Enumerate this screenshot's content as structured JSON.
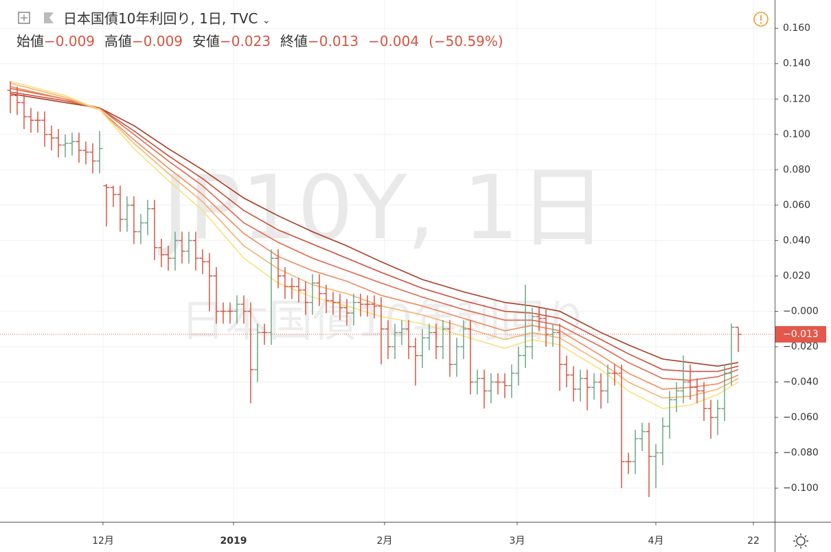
{
  "chart_data": {
    "type": "ohlc",
    "title": "日本国債10年利回り, 1日, TVC",
    "quote": [
      {
        "label": "始値",
        "value": "−0.009"
      },
      {
        "label": "高値",
        "value": "−0.009"
      },
      {
        "label": "安値",
        "value": "−0.023"
      },
      {
        "label": "終値",
        "value": "−0.013"
      }
    ],
    "change": "−0.004",
    "change_pct": "(−50.59%)",
    "watermark": "JP10Y, 1日",
    "watermark_sub": "日本国債10年利回り",
    "up_color": "#6ba583",
    "down_color": "#d75442",
    "open": [
      0.125,
      0.122,
      0.118,
      0.11,
      0.108,
      0.108,
      0.1,
      0.098,
      0.094,
      0.095,
      0.096,
      0.091,
      0.09,
      0.085,
      0.071,
      0.07,
      0.066,
      0.052,
      0.06,
      0.045,
      0.05,
      0.058,
      0.036,
      0.032,
      0.03,
      0.04,
      0.034,
      0.04,
      0.03,
      0.028,
      0.02,
      0,
      0,
      0,
      0.004,
      0,
      -0.033,
      -0.012,
      -0.012,
      0.03,
      0.02,
      0.014,
      0.014,
      0.012,
      0.005,
      0.016,
      0.01,
      0.006,
      0.005,
      0.002,
      -0.001,
      0.005,
      0.004,
      0.004,
      0.003,
      -0.01,
      -0.02,
      -0.012,
      -0.01,
      -0.02,
      -0.025,
      -0.015,
      -0.012,
      -0.02,
      -0.01,
      -0.03,
      -0.02,
      -0.01,
      -0.04,
      -0.038,
      -0.045,
      -0.04,
      -0.04,
      -0.042,
      -0.035,
      -0.025,
      -0.02,
      -0.003,
      -0.004,
      -0.013,
      -0.012,
      -0.03,
      -0.036,
      -0.044,
      -0.038,
      -0.043,
      -0.04,
      -0.045,
      -0.035,
      -0.035,
      -0.085,
      -0.085,
      -0.072,
      -0.068,
      -0.082,
      -0.08,
      -0.065,
      -0.05,
      -0.045,
      -0.04,
      -0.043,
      -0.045,
      -0.055,
      -0.06,
      -0.055,
      -0.035,
      -0.009
    ],
    "high": [
      0.13,
      0.127,
      0.123,
      0.115,
      0.113,
      0.113,
      0.105,
      0.103,
      0.1,
      0.101,
      0.101,
      0.096,
      0.095,
      0.102,
      0.072,
      0.071,
      0.071,
      0.065,
      0.065,
      0.055,
      0.063,
      0.063,
      0.041,
      0.037,
      0.045,
      0.045,
      0.045,
      0.045,
      0.035,
      0.033,
      0.025,
      0.005,
      0.005,
      0.009,
      0.009,
      0.005,
      -0.007,
      -0.007,
      0.035,
      0.035,
      0.025,
      0.019,
      0.019,
      0.017,
      0.021,
      0.021,
      0.015,
      0.011,
      0.01,
      0.007,
      0.01,
      0.01,
      0.009,
      0.009,
      0.008,
      -0.005,
      -0.007,
      -0.005,
      -0.005,
      -0.015,
      -0.01,
      -0.007,
      -0.007,
      -0.005,
      -0.005,
      -0.015,
      -0.005,
      -0.005,
      -0.033,
      -0.033,
      -0.035,
      -0.035,
      -0.035,
      -0.03,
      -0.02,
      0.015,
      0.002,
      0.002,
      0.001,
      -0.007,
      -0.007,
      -0.025,
      -0.031,
      -0.033,
      -0.033,
      -0.035,
      -0.035,
      -0.03,
      -0.03,
      -0.03,
      -0.08,
      -0.067,
      -0.063,
      -0.063,
      -0.075,
      -0.06,
      -0.045,
      -0.04,
      -0.025,
      -0.03,
      -0.038,
      -0.04,
      -0.05,
      -0.05,
      -0.03,
      -0.007,
      -0.009
    ],
    "low": [
      0.112,
      0.111,
      0.103,
      0.101,
      0.101,
      0.093,
      0.091,
      0.087,
      0.087,
      0.088,
      0.084,
      0.083,
      0.078,
      0.078,
      0.048,
      0.059,
      0.045,
      0.045,
      0.038,
      0.038,
      0.043,
      0.029,
      0.025,
      0.023,
      0.023,
      0.027,
      0.027,
      0.023,
      0.021,
      0.0,
      -0.007,
      -0.007,
      -0.007,
      -0.007,
      -0.007,
      -0.052,
      -0.04,
      -0.019,
      -0.019,
      0.013,
      0.007,
      0.007,
      0.005,
      -0.002,
      -0.002,
      0.003,
      -0.001,
      -0.002,
      -0.005,
      -0.008,
      -0.008,
      -0.003,
      -0.003,
      -0.004,
      -0.03,
      -0.027,
      -0.027,
      -0.019,
      -0.027,
      -0.042,
      -0.032,
      -0.022,
      -0.027,
      -0.027,
      -0.037,
      -0.037,
      -0.027,
      -0.047,
      -0.047,
      -0.055,
      -0.052,
      -0.047,
      -0.049,
      -0.049,
      -0.042,
      -0.032,
      -0.027,
      -0.011,
      -0.02,
      -0.02,
      -0.045,
      -0.043,
      -0.051,
      -0.051,
      -0.056,
      -0.05,
      -0.055,
      -0.052,
      -0.042,
      -0.1,
      -0.092,
      -0.092,
      -0.079,
      -0.105,
      -0.1,
      -0.087,
      -0.072,
      -0.057,
      -0.052,
      -0.05,
      -0.052,
      -0.062,
      -0.072,
      -0.07,
      -0.062,
      -0.042,
      -0.023
    ],
    "close": [
      0.122,
      0.118,
      0.11,
      0.108,
      0.108,
      0.1,
      0.098,
      0.094,
      0.095,
      0.096,
      0.091,
      0.09,
      0.085,
      0.092,
      0.07,
      0.066,
      0.052,
      0.06,
      0.045,
      0.05,
      0.058,
      0.036,
      0.032,
      0.03,
      0.04,
      0.034,
      0.04,
      0.03,
      0.028,
      0.02,
      0,
      0,
      0,
      0.004,
      0,
      -0.033,
      -0.012,
      -0.012,
      0.03,
      0.02,
      0.014,
      0.014,
      0.012,
      0.005,
      0.016,
      0.01,
      0.006,
      0.005,
      0.002,
      -0.001,
      0.005,
      0.004,
      0.004,
      0.003,
      -0.01,
      -0.02,
      -0.012,
      -0.01,
      -0.02,
      -0.025,
      -0.015,
      -0.012,
      -0.02,
      -0.01,
      -0.03,
      -0.02,
      -0.01,
      -0.04,
      -0.038,
      -0.045,
      -0.04,
      -0.04,
      -0.042,
      -0.035,
      -0.025,
      -0.02,
      -0.003,
      -0.004,
      -0.013,
      -0.012,
      -0.03,
      -0.036,
      -0.044,
      -0.038,
      -0.043,
      -0.04,
      -0.045,
      -0.035,
      -0.035,
      -0.085,
      -0.085,
      -0.072,
      -0.068,
      -0.082,
      -0.08,
      -0.065,
      -0.05,
      -0.045,
      -0.04,
      -0.043,
      -0.045,
      -0.055,
      -0.06,
      -0.055,
      -0.035,
      -0.009,
      -0.013
    ],
    "ma_x": [
      0,
      8,
      13,
      18,
      23,
      28,
      34,
      39,
      44,
      49,
      54,
      60,
      66,
      72,
      76,
      80,
      86,
      90,
      95,
      99,
      103,
      106
    ],
    "series": [
      {
        "color": "#a83a20",
        "values": [
          0.123,
          0.118,
          0.115,
          0.105,
          0.092,
          0.08,
          0.064,
          0.054,
          0.045,
          0.037,
          0.028,
          0.018,
          0.011,
          0.005,
          0.003,
          0.0,
          -0.012,
          -0.019,
          -0.027,
          -0.029,
          -0.031,
          -0.029
        ]
      },
      {
        "color": "#cc4d38",
        "values": [
          0.124,
          0.119,
          0.115,
          0.102,
          0.088,
          0.075,
          0.057,
          0.046,
          0.038,
          0.03,
          0.022,
          0.013,
          0.006,
          0.0,
          -0.001,
          -0.004,
          -0.016,
          -0.024,
          -0.033,
          -0.034,
          -0.034,
          -0.031
        ]
      },
      {
        "color": "#e2674d",
        "values": [
          0.126,
          0.12,
          0.115,
          0.1,
          0.085,
          0.071,
          0.05,
          0.039,
          0.03,
          0.023,
          0.016,
          0.008,
          0.001,
          -0.005,
          -0.005,
          -0.008,
          -0.02,
          -0.029,
          -0.038,
          -0.039,
          -0.037,
          -0.033
        ]
      },
      {
        "color": "#ee8b5c",
        "values": [
          0.127,
          0.12,
          0.114,
          0.097,
          0.081,
          0.066,
          0.044,
          0.031,
          0.023,
          0.017,
          0.009,
          0.003,
          -0.004,
          -0.011,
          -0.008,
          -0.011,
          -0.025,
          -0.035,
          -0.044,
          -0.043,
          -0.041,
          -0.036
        ]
      },
      {
        "color": "#f4b46e",
        "values": [
          0.129,
          0.121,
          0.114,
          0.095,
          0.078,
          0.062,
          0.037,
          0.024,
          0.015,
          0.01,
          0.003,
          -0.002,
          -0.009,
          -0.016,
          -0.012,
          -0.015,
          -0.029,
          -0.04,
          -0.049,
          -0.048,
          -0.044,
          -0.038
        ]
      },
      {
        "color": "#f7e27a",
        "values": [
          0.13,
          0.122,
          0.114,
          0.092,
          0.074,
          0.057,
          0.03,
          0.016,
          0.008,
          0.003,
          -0.003,
          -0.007,
          -0.014,
          -0.021,
          -0.016,
          -0.019,
          -0.033,
          -0.045,
          -0.055,
          -0.053,
          -0.047,
          -0.04
        ]
      }
    ],
    "xlim": [
      -1.5,
      111.3
    ],
    "xticks": [
      {
        "value": 13.5,
        "label": "12月"
      },
      {
        "value": 32.5,
        "label": "2019"
      },
      {
        "value": 54.5,
        "label": "2月"
      },
      {
        "value": 73.8,
        "label": "3月"
      },
      {
        "value": 94,
        "label": "4月"
      },
      {
        "value": 108.2,
        "label": "22"
      }
    ],
    "ylim": [
      -0.119,
      0.176
    ],
    "yticks": [
      {
        "value": 0.16,
        "label": "0.160"
      },
      {
        "value": 0.14,
        "label": "0.140"
      },
      {
        "value": 0.12,
        "label": "0.120"
      },
      {
        "value": 0.1,
        "label": "0.100"
      },
      {
        "value": 0.08,
        "label": "0.080"
      },
      {
        "value": 0.06,
        "label": "0.060"
      },
      {
        "value": 0.04,
        "label": "0.040"
      },
      {
        "value": 0.02,
        "label": "0.020"
      },
      {
        "value": 0,
        "label": "−0.000"
      },
      {
        "value": -0.02,
        "label": "−0.020"
      },
      {
        "value": -0.04,
        "label": "−0.040"
      },
      {
        "value": -0.06,
        "label": "−0.060"
      },
      {
        "value": -0.08,
        "label": "−0.080"
      },
      {
        "value": -0.1,
        "label": "−0.100"
      }
    ],
    "grid": true,
    "last_price": {
      "value": -0.013,
      "label": "−0.013"
    },
    "last_color": "#e3584b"
  }
}
